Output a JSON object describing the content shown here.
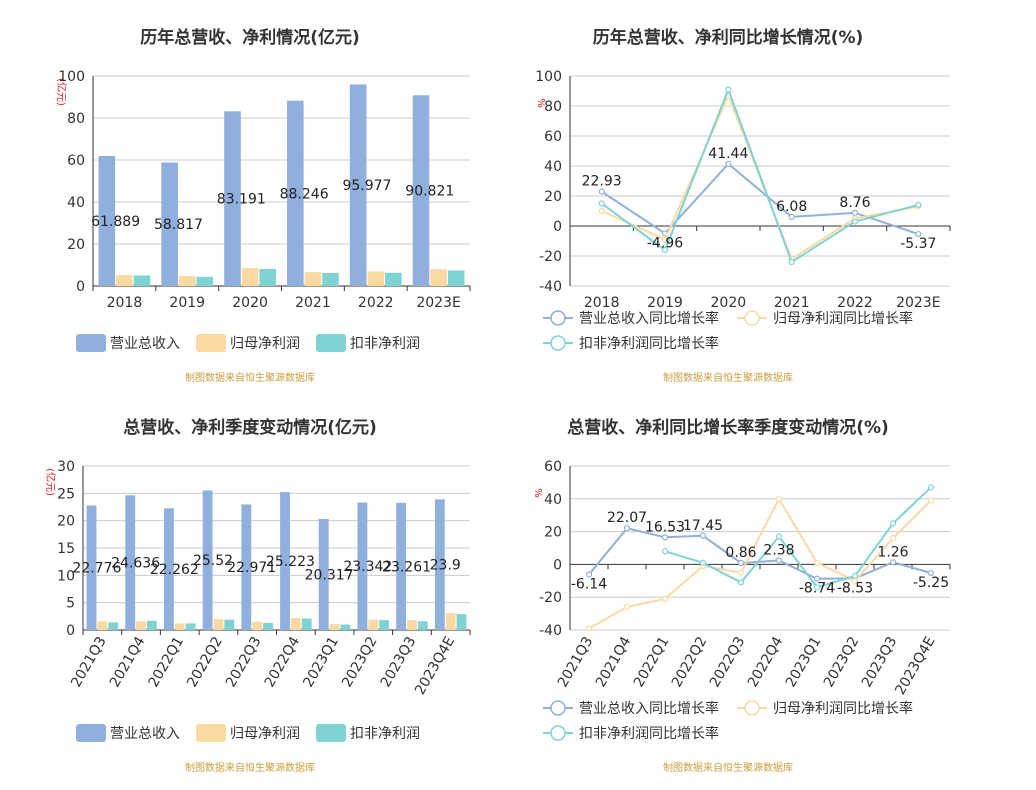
{
  "colors": {
    "revenue": "#8fafdc",
    "parent_profit": "#fbd9a2",
    "deducted_profit": "#7fd3d3",
    "axis_text": "#333333",
    "unit_red": "#e02020",
    "source": "#c8a040",
    "grid": "#cccccc"
  },
  "chart_data": [
    {
      "type": "bar",
      "title": "历年总营收、净利情况(亿元)",
      "ylabel": "(亿元)",
      "ylim": [
        0,
        100
      ],
      "yticks": [
        "0",
        "20",
        "40",
        "60",
        "80",
        "100"
      ],
      "categories": [
        "2018",
        "2019",
        "2020",
        "2021",
        "2022",
        "2023E"
      ],
      "series": [
        {
          "name": "营业总收入",
          "values": [
            61.889,
            58.817,
            83.191,
            88.246,
            95.977,
            90.821
          ],
          "labels": [
            "61.889",
            "58.817",
            "83.191",
            "88.246",
            "95.977",
            "90.821"
          ]
        },
        {
          "name": "归母净利润",
          "values": [
            5.2,
            4.8,
            8.6,
            6.6,
            6.9,
            8.0
          ]
        },
        {
          "name": "扣非净利润",
          "values": [
            5.0,
            4.4,
            8.1,
            6.2,
            6.3,
            7.4
          ]
        }
      ],
      "source": "制图数据来自恒生聚源数据库",
      "grid": true,
      "legend": "bottom"
    },
    {
      "type": "line",
      "title": "历年总营收、净利同比增长情况(%)",
      "ylabel": "%",
      "ylim": [
        -40,
        100
      ],
      "yticks": [
        "-40",
        "-20",
        "0",
        "20",
        "40",
        "60",
        "80",
        "100"
      ],
      "categories": [
        "2018",
        "2019",
        "2020",
        "2021",
        "2022",
        "2023E"
      ],
      "series": [
        {
          "name": "营业总收入同比增长率",
          "values": [
            22.93,
            -4.96,
            41.44,
            6.08,
            8.76,
            -5.37
          ],
          "labels": [
            "22.93",
            "-4.96",
            "41.44",
            "6.08",
            "8.76",
            "-5.37"
          ]
        },
        {
          "name": "归母净利润同比增长率",
          "values": [
            10,
            -9,
            87,
            -22,
            5,
            13
          ]
        },
        {
          "name": "扣非净利润同比增长率",
          "values": [
            15,
            -16,
            91,
            -24,
            3,
            14
          ]
        }
      ],
      "source": "制图数据来自恒生聚源数据库",
      "grid": true,
      "legend": "bottom"
    },
    {
      "type": "bar",
      "title": "总营收、净利季度变动情况(亿元)",
      "ylabel": "(亿元)",
      "ylim": [
        0,
        30
      ],
      "yticks": [
        "0",
        "5",
        "10",
        "15",
        "20",
        "25",
        "30"
      ],
      "categories": [
        "2021Q3",
        "2021Q4",
        "2022Q1",
        "2022Q2",
        "2022Q3",
        "2022Q4",
        "2023Q1",
        "2023Q2",
        "2023Q3",
        "2023Q4E"
      ],
      "series": [
        {
          "name": "营业总收入",
          "values": [
            22.776,
            24.636,
            22.262,
            25.52,
            22.971,
            25.223,
            20.317,
            23.342,
            23.261,
            23.9
          ],
          "labels": [
            "22.776",
            "24.636",
            "22.262",
            "25.52",
            "22.971",
            "25.223",
            "20.317",
            "23.342",
            "23.261",
            "23.9"
          ]
        },
        {
          "name": "归母净利润",
          "values": [
            1.6,
            1.6,
            1.2,
            2.0,
            1.5,
            2.2,
            1.1,
            1.9,
            1.8,
            3.1
          ]
        },
        {
          "name": "扣非净利润",
          "values": [
            1.4,
            1.7,
            1.2,
            1.9,
            1.3,
            2.1,
            1.0,
            1.8,
            1.6,
            2.9
          ]
        }
      ],
      "source": "制图数据来自恒生聚源数据库",
      "grid": true,
      "legend": "bottom"
    },
    {
      "type": "line",
      "title": "总营收、净利同比增长率季度变动情况(%)",
      "ylabel": "%",
      "ylim": [
        -40,
        60
      ],
      "yticks": [
        "-40",
        "-20",
        "0",
        "20",
        "40",
        "60"
      ],
      "categories": [
        "2021Q3",
        "2021Q4",
        "2022Q1",
        "2022Q2",
        "2022Q3",
        "2022Q4",
        "2023Q1",
        "2023Q2",
        "2023Q3",
        "2023Q4E"
      ],
      "series": [
        {
          "name": "营业总收入同比增长率",
          "values": [
            -6.14,
            22.07,
            16.53,
            17.45,
            0.86,
            2.38,
            -8.74,
            -8.53,
            1.26,
            -5.25
          ],
          "labels": [
            "-6.14",
            "22.07",
            "16.53",
            "17.45",
            "0.86",
            "2.38",
            "-8.74",
            "-8.53",
            "1.26",
            "-5.25"
          ]
        },
        {
          "name": "归母净利润同比增长率",
          "values": [
            -39,
            -26,
            -21,
            -1,
            -5,
            40,
            1,
            -10,
            16,
            39
          ]
        },
        {
          "name": "扣非净利润同比增长率",
          "values": [
            null,
            null,
            8,
            1,
            -11,
            17,
            -14,
            -7,
            25,
            47
          ]
        }
      ],
      "source": "制图数据来自恒生聚源数据库",
      "grid": true,
      "legend": "bottom"
    }
  ]
}
